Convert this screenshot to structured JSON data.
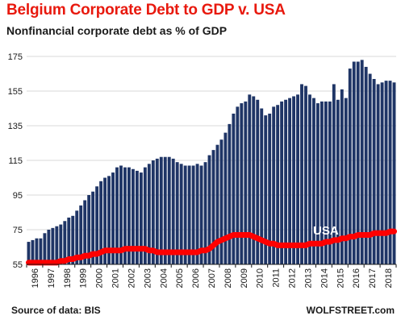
{
  "header": {
    "title": "Belgium Corporate Debt to GDP v. USA",
    "subtitle": "Nonfinancial corporate debt as % of GDP"
  },
  "footer": {
    "source": "Source of data: BIS",
    "brand": "WOLFSTREET.com"
  },
  "colors": {
    "title": "#e8190e",
    "bars": "#1f3566",
    "usa_line": "#ff0000",
    "usa_label": "#ffffff"
  },
  "chart_data": {
    "type": "bar",
    "title": "Belgium Corporate Debt to GDP v. USA",
    "subtitle": "Nonfinancial corporate debt as % of GDP",
    "xlabel": "",
    "ylabel": "",
    "ylim": [
      55,
      182
    ],
    "yticks": [
      175,
      155,
      135,
      115,
      95,
      75,
      55
    ],
    "grid": true,
    "year_labels": [
      "1996",
      "1997",
      "1998",
      "1999",
      "2000",
      "2001",
      "2002",
      "2003",
      "2004",
      "2005",
      "2006",
      "2007",
      "2008",
      "2009",
      "2010",
      "2011",
      "2012",
      "2013",
      "2014",
      "2015",
      "2016",
      "2017",
      "2018"
    ],
    "categories": [
      "1996Q1",
      "1996Q2",
      "1996Q3",
      "1996Q4",
      "1997Q1",
      "1997Q2",
      "1997Q3",
      "1997Q4",
      "1998Q1",
      "1998Q2",
      "1998Q3",
      "1998Q4",
      "1999Q1",
      "1999Q2",
      "1999Q3",
      "1999Q4",
      "2000Q1",
      "2000Q2",
      "2000Q3",
      "2000Q4",
      "2001Q1",
      "2001Q2",
      "2001Q3",
      "2001Q4",
      "2002Q1",
      "2002Q2",
      "2002Q3",
      "2002Q4",
      "2003Q1",
      "2003Q2",
      "2003Q3",
      "2003Q4",
      "2004Q1",
      "2004Q2",
      "2004Q3",
      "2004Q4",
      "2005Q1",
      "2005Q2",
      "2005Q3",
      "2005Q4",
      "2006Q1",
      "2006Q2",
      "2006Q3",
      "2006Q4",
      "2007Q1",
      "2007Q2",
      "2007Q3",
      "2007Q4",
      "2008Q1",
      "2008Q2",
      "2008Q3",
      "2008Q4",
      "2009Q1",
      "2009Q2",
      "2009Q3",
      "2009Q4",
      "2010Q1",
      "2010Q2",
      "2010Q3",
      "2010Q4",
      "2011Q1",
      "2011Q2",
      "2011Q3",
      "2011Q4",
      "2012Q1",
      "2012Q2",
      "2012Q3",
      "2012Q4",
      "2013Q1",
      "2013Q2",
      "2013Q3",
      "2013Q4",
      "2014Q1",
      "2014Q2",
      "2014Q3",
      "2014Q4",
      "2015Q1",
      "2015Q2",
      "2015Q3",
      "2015Q4",
      "2016Q1",
      "2016Q2",
      "2016Q3",
      "2016Q4",
      "2017Q1",
      "2017Q2",
      "2017Q3",
      "2017Q4",
      "2018Q1",
      "2018Q2",
      "2018Q3",
      "2018Q4"
    ],
    "series": [
      {
        "name": "Belgium",
        "type": "bar",
        "values": [
          68,
          69,
          70,
          70,
          73,
          75,
          76,
          77,
          78,
          80,
          82,
          83,
          86,
          89,
          92,
          95,
          97,
          100,
          103,
          105,
          106,
          108,
          111,
          112,
          111,
          111,
          110,
          109,
          108,
          111,
          113,
          115,
          116,
          117,
          117,
          117,
          116,
          114,
          113,
          112,
          112,
          112,
          113,
          112,
          114,
          118,
          121,
          124,
          127,
          131,
          136,
          142,
          146,
          148,
          149,
          153,
          152,
          150,
          145,
          141,
          142,
          146,
          147,
          149,
          150,
          151,
          152,
          153,
          159,
          158,
          153,
          151,
          148,
          149,
          149,
          149,
          159,
          150,
          156,
          151,
          168,
          172,
          172,
          173,
          169,
          165,
          162,
          159,
          160,
          161,
          161,
          160
        ]
      },
      {
        "name": "USA",
        "type": "line",
        "values": [
          56,
          56,
          56,
          56,
          56,
          56,
          56,
          56,
          57,
          57,
          58,
          58,
          59,
          59,
          60,
          60,
          61,
          61,
          62,
          63,
          63,
          63,
          63,
          63,
          64,
          64,
          64,
          64,
          64,
          64,
          63,
          63,
          62,
          62,
          62,
          62,
          62,
          62,
          62,
          62,
          62,
          62,
          62,
          63,
          63,
          64,
          66,
          68,
          69,
          70,
          71,
          72,
          72,
          72,
          72,
          72,
          71,
          70,
          69,
          68,
          67,
          67,
          66,
          66,
          66,
          66,
          66,
          66,
          66,
          66,
          67,
          67,
          67,
          67,
          68,
          68,
          69,
          69,
          70,
          70,
          71,
          71,
          72,
          72,
          72,
          72,
          73,
          73,
          73,
          73,
          74,
          74
        ]
      }
    ]
  }
}
